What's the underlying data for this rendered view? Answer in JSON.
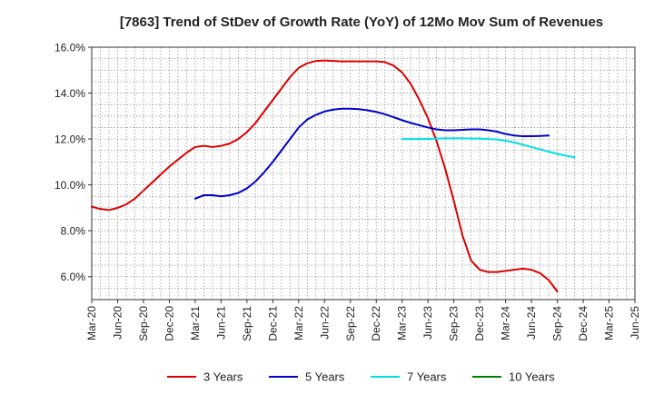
{
  "chart_data": {
    "type": "line",
    "title": "[7863]  Trend of StDev of Growth Rate (YoY) of 12Mo Mov Sum of Revenues",
    "xlabel": "",
    "ylabel": "",
    "ylim": [
      5.0,
      16.0
    ],
    "yticks": [
      6.0,
      8.0,
      10.0,
      12.0,
      14.0,
      16.0
    ],
    "ytick_labels": [
      "6.0%",
      "8.0%",
      "10.0%",
      "12.0%",
      "14.0%",
      "16.0%"
    ],
    "x_range_months": [
      0,
      63
    ],
    "xtick_labels": [
      "Mar-20",
      "Jun-20",
      "Sep-20",
      "Dec-20",
      "Mar-21",
      "Jun-21",
      "Sep-21",
      "Dec-21",
      "Mar-22",
      "Jun-22",
      "Sep-22",
      "Dec-22",
      "Mar-23",
      "Jun-23",
      "Sep-23",
      "Dec-23",
      "Mar-24",
      "Jun-24",
      "Sep-24",
      "Dec-24",
      "Mar-25",
      "Jun-25"
    ],
    "grid": true,
    "legend_position": "bottom",
    "series": [
      {
        "name": "3 Years",
        "color": "#dd0000",
        "start_month": 0,
        "values": [
          9.05,
          8.95,
          8.9,
          9.0,
          9.15,
          9.4,
          9.75,
          10.1,
          10.45,
          10.8,
          11.1,
          11.4,
          11.65,
          11.7,
          11.65,
          11.7,
          11.8,
          12.0,
          12.3,
          12.7,
          13.2,
          13.7,
          14.2,
          14.7,
          15.1,
          15.3,
          15.4,
          15.42,
          15.4,
          15.38,
          15.38,
          15.38,
          15.38,
          15.38,
          15.35,
          15.2,
          14.9,
          14.4,
          13.7,
          12.9,
          11.9,
          10.7,
          9.3,
          7.8,
          6.7,
          6.3,
          6.2,
          6.2,
          6.25,
          6.3,
          6.35,
          6.3,
          6.15,
          5.85,
          5.35
        ]
      },
      {
        "name": "5 Years",
        "color": "#0000cc",
        "start_month": 12,
        "values": [
          9.4,
          9.55,
          9.55,
          9.5,
          9.55,
          9.65,
          9.85,
          10.15,
          10.55,
          11.0,
          11.5,
          12.0,
          12.5,
          12.85,
          13.05,
          13.2,
          13.28,
          13.32,
          13.32,
          13.3,
          13.25,
          13.18,
          13.08,
          12.95,
          12.82,
          12.7,
          12.6,
          12.5,
          12.42,
          12.38,
          12.38,
          12.4,
          12.42,
          12.42,
          12.38,
          12.32,
          12.22,
          12.15,
          12.12,
          12.12,
          12.13,
          12.15
        ]
      },
      {
        "name": "7 Years",
        "color": "#00e0e0",
        "start_month": 36,
        "values": [
          12.0,
          12.0,
          12.0,
          12.0,
          12.02,
          12.03,
          12.03,
          12.03,
          12.02,
          12.02,
          12.0,
          11.98,
          11.92,
          11.85,
          11.75,
          11.65,
          11.55,
          11.45,
          11.35,
          11.27,
          11.2
        ]
      },
      {
        "name": "10 Years",
        "color": "#008000",
        "start_month": 0,
        "values": []
      }
    ]
  }
}
